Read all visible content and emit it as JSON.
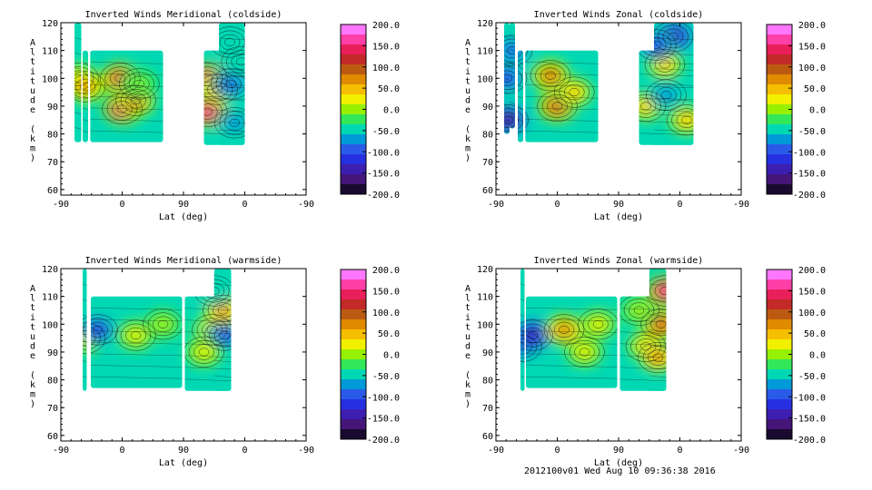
{
  "chart_data": [
    {
      "type": "heatmap",
      "title": "Inverted Winds Meridional (coldside)",
      "xlabel": "Lat (deg)",
      "ylabel": "Altitude (km)",
      "x_ticks": [
        "-90",
        "0",
        "90",
        "0",
        "-90"
      ],
      "y_ticks": [
        "60",
        "70",
        "80",
        "90",
        "100",
        "110",
        "120"
      ],
      "ylim": [
        58,
        120
      ],
      "colorbar_ticks": [
        "200.0",
        "150.0",
        "100.0",
        "50.0",
        "0.0",
        "-50.0",
        "-100.0",
        "-150.0",
        "-200.0"
      ],
      "clim": [
        -200,
        200
      ],
      "coverage": [
        [
          -70,
          -60,
          77,
          120
        ],
        [
          -58,
          -50,
          77,
          110
        ],
        [
          -47,
          60,
          77,
          110
        ],
        [
          120,
          180,
          76,
          110
        ],
        [
          142,
          180,
          76,
          120
        ]
      ],
      "features": [
        {
          "x": -3,
          "y": 100,
          "value": 140
        },
        {
          "x": 0,
          "y": 89,
          "value": 170
        },
        {
          "x": 20,
          "y": 92,
          "value": 110
        },
        {
          "x": 25,
          "y": 98,
          "value": -10
        },
        {
          "x": -64,
          "y": 100,
          "value": 60
        },
        {
          "x": -54,
          "y": 97,
          "value": 80
        },
        {
          "x": 125,
          "y": 100,
          "value": 170
        },
        {
          "x": 125,
          "y": 88,
          "value": 180
        },
        {
          "x": 140,
          "y": 96,
          "value": 80
        },
        {
          "x": 160,
          "y": 98,
          "value": -100
        },
        {
          "x": 158,
          "y": 113,
          "value": -60
        },
        {
          "x": 175,
          "y": 106,
          "value": -40
        },
        {
          "x": 165,
          "y": 84,
          "value": -80
        }
      ]
    },
    {
      "type": "heatmap",
      "title": "Inverted Winds Zonal (coldside)",
      "xlabel": "Lat (deg)",
      "ylabel": "Altitude (km)",
      "x_ticks": [
        "-90",
        "0",
        "90",
        "0",
        "-90"
      ],
      "y_ticks": [
        "60",
        "70",
        "80",
        "90",
        "100",
        "110",
        "120"
      ],
      "ylim": [
        58,
        120
      ],
      "colorbar_ticks": [
        "200.0",
        "150.0",
        "100.0",
        "50.0",
        "0.0",
        "-50.0",
        "-100.0",
        "-150.0",
        "-200.0"
      ],
      "clim": [
        -200,
        200
      ],
      "coverage": [
        [
          -78,
          -70,
          80,
          120
        ],
        [
          -70,
          -62,
          82,
          120
        ],
        [
          -58,
          -50,
          77,
          110
        ],
        [
          -47,
          60,
          77,
          110
        ],
        [
          120,
          200,
          76,
          110
        ],
        [
          142,
          200,
          76,
          120
        ]
      ],
      "features": [
        {
          "x": -72,
          "y": 85,
          "value": -180
        },
        {
          "x": -74,
          "y": 100,
          "value": -120
        },
        {
          "x": -66,
          "y": 110,
          "value": -90
        },
        {
          "x": 0,
          "y": 90,
          "value": 120
        },
        {
          "x": -10,
          "y": 101,
          "value": 110
        },
        {
          "x": 25,
          "y": 95,
          "value": 40
        },
        {
          "x": 130,
          "y": 90,
          "value": 50
        },
        {
          "x": 160,
          "y": 94,
          "value": -80
        },
        {
          "x": 158,
          "y": 105,
          "value": 40
        },
        {
          "x": 170,
          "y": 115,
          "value": -150
        },
        {
          "x": 190,
          "y": 85,
          "value": 60
        },
        {
          "x": 145,
          "y": 112,
          "value": -110
        }
      ]
    },
    {
      "type": "heatmap",
      "title": "Inverted Winds Meridional (warmside)",
      "xlabel": "Lat (deg)",
      "ylabel": "Altitude (km)",
      "x_ticks": [
        "-90",
        "0",
        "90",
        "0",
        "-90"
      ],
      "y_ticks": [
        "60",
        "70",
        "80",
        "90",
        "100",
        "110",
        "120"
      ],
      "ylim": [
        58,
        120
      ],
      "colorbar_ticks": [
        "200.0",
        "150.0",
        "100.0",
        "50.0",
        "0.0",
        "-50.0",
        "-100.0",
        "-150.0",
        "-200.0"
      ],
      "clim": [
        -200,
        200
      ],
      "coverage": [
        [
          -58,
          -52,
          76,
          120
        ],
        [
          -46,
          88,
          77,
          110
        ],
        [
          92,
          160,
          76,
          110
        ],
        [
          135,
          160,
          76,
          120
        ]
      ],
      "features": [
        {
          "x": -54,
          "y": 95,
          "value": 60
        },
        {
          "x": -36,
          "y": 98,
          "value": -120
        },
        {
          "x": 20,
          "y": 96,
          "value": 20
        },
        {
          "x": 60,
          "y": 100,
          "value": 0
        },
        {
          "x": 132,
          "y": 98,
          "value": 40
        },
        {
          "x": 150,
          "y": 96,
          "value": -110
        },
        {
          "x": 148,
          "y": 105,
          "value": 80
        },
        {
          "x": 135,
          "y": 112,
          "value": -60
        },
        {
          "x": 120,
          "y": 90,
          "value": 20
        }
      ]
    },
    {
      "type": "heatmap",
      "title": "Inverted Winds Zonal (warmside)",
      "xlabel": "Lat (deg)",
      "ylabel": "Altitude (km)",
      "x_ticks": [
        "-90",
        "0",
        "90",
        "0",
        "-90"
      ],
      "y_ticks": [
        "60",
        "70",
        "80",
        "90",
        "100",
        "110",
        "120"
      ],
      "ylim": [
        58,
        120
      ],
      "colorbar_ticks": [
        "200.0",
        "150.0",
        "100.0",
        "50.0",
        "0.0",
        "-50.0",
        "-100.0",
        "-150.0",
        "-200.0"
      ],
      "clim": [
        -200,
        200
      ],
      "coverage": [
        [
          -54,
          -48,
          76,
          120
        ],
        [
          -46,
          88,
          77,
          110
        ],
        [
          92,
          160,
          76,
          110
        ],
        [
          135,
          160,
          76,
          120
        ]
      ],
      "features": [
        {
          "x": -52,
          "y": 92,
          "value": -100
        },
        {
          "x": -36,
          "y": 96,
          "value": -150
        },
        {
          "x": 10,
          "y": 98,
          "value": 90
        },
        {
          "x": 40,
          "y": 90,
          "value": 30
        },
        {
          "x": 60,
          "y": 100,
          "value": 20
        },
        {
          "x": 130,
          "y": 92,
          "value": 60
        },
        {
          "x": 152,
          "y": 100,
          "value": 120
        },
        {
          "x": 158,
          "y": 112,
          "value": 170
        },
        {
          "x": 120,
          "y": 105,
          "value": 10
        },
        {
          "x": 148,
          "y": 88,
          "value": 70
        }
      ]
    }
  ],
  "footer": {
    "run_label": "2012100v01 Wed Aug 10 09:36:38 2016"
  }
}
